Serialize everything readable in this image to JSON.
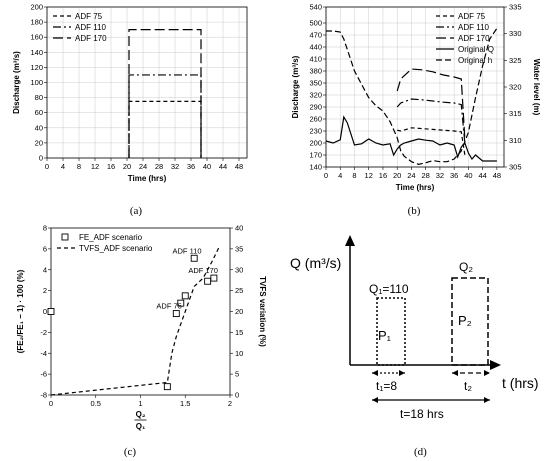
{
  "chart_data": [
    {
      "type": "line",
      "caption": "(a)",
      "xlabel": "Time (hrs)",
      "ylabel": "Discharge (m³/s)",
      "xlim": [
        0,
        50
      ],
      "ylim": [
        0,
        200
      ],
      "xticks": [
        0,
        4,
        8,
        12,
        16,
        20,
        24,
        28,
        32,
        36,
        40,
        44,
        48
      ],
      "yticks": [
        0,
        20,
        40,
        60,
        80,
        100,
        120,
        140,
        160,
        180,
        200
      ],
      "grid": true,
      "legend_position": "top-left",
      "series": [
        {
          "name": "ADF 75",
          "dash": "4,3",
          "x": [
            20.5,
            20.5,
            38.5,
            38.5
          ],
          "y": [
            0,
            75,
            75,
            0
          ]
        },
        {
          "name": "ADF 110",
          "dash": "8,3,2,3",
          "x": [
            20.5,
            20.5,
            38.5,
            38.5
          ],
          "y": [
            0,
            110,
            110,
            0
          ]
        },
        {
          "name": "ADF 170",
          "dash": "10,4",
          "x": [
            20.5,
            20.5,
            38.5,
            38.5
          ],
          "y": [
            0,
            170,
            170,
            0
          ]
        }
      ]
    },
    {
      "type": "line",
      "caption": "(b)",
      "xlabel": "Time (hrs)",
      "ylabel": "Discharge (m³/s)",
      "ylabel_right": "Water level (m)",
      "xlim": [
        0,
        50
      ],
      "ylim": [
        140,
        540
      ],
      "ylim_right": [
        305,
        335
      ],
      "xticks": [
        0,
        4,
        8,
        12,
        16,
        20,
        24,
        28,
        32,
        36,
        40,
        44,
        48
      ],
      "yticks": [
        140,
        170,
        200,
        230,
        260,
        290,
        320,
        350,
        380,
        410,
        440,
        470,
        500,
        540
      ],
      "yticks_right": [
        305,
        310,
        315,
        320,
        325,
        330,
        335
      ],
      "grid": true,
      "legend_position": "top-right",
      "series": [
        {
          "name": "ADF 75",
          "dash": "4,3",
          "axis": "left",
          "x": [
            20,
            21,
            24,
            27,
            30,
            33,
            36,
            38,
            39
          ],
          "y": [
            232,
            230,
            238,
            236,
            234,
            232,
            230,
            228,
            170
          ]
        },
        {
          "name": "ADF 110",
          "dash": "8,3,2,3",
          "axis": "left",
          "x": [
            20,
            21,
            24,
            27,
            30,
            33,
            36,
            38,
            39
          ],
          "y": [
            290,
            300,
            310,
            308,
            305,
            302,
            300,
            296,
            200
          ]
        },
        {
          "name": "ADF 170",
          "dash": "10,4",
          "axis": "left",
          "x": [
            20,
            21,
            24,
            27,
            30,
            33,
            36,
            38,
            39
          ],
          "y": [
            330,
            360,
            385,
            383,
            378,
            370,
            365,
            360,
            210
          ]
        },
        {
          "name": "Original Q",
          "dash": "",
          "axis": "left",
          "x": [
            0,
            2,
            4,
            5,
            6,
            8,
            10,
            12,
            14,
            16,
            18,
            19,
            20,
            21,
            22,
            24,
            26,
            28,
            30,
            32,
            34,
            36,
            37,
            38,
            39,
            40,
            41,
            42,
            44,
            46,
            48
          ],
          "y": [
            205,
            200,
            208,
            265,
            250,
            195,
            198,
            210,
            200,
            195,
            198,
            170,
            185,
            195,
            200,
            205,
            210,
            207,
            205,
            195,
            200,
            195,
            165,
            190,
            200,
            175,
            160,
            170,
            155,
            155,
            155
          ]
        },
        {
          "name": "Original h",
          "dash": "6,3",
          "axis": "right",
          "x": [
            0,
            2,
            4,
            5,
            6,
            8,
            10,
            12,
            14,
            16,
            18,
            20,
            21,
            22,
            24,
            26,
            28,
            30,
            32,
            34,
            36,
            38,
            40,
            42,
            44,
            46,
            48
          ],
          "y": [
            330.5,
            330.5,
            330.3,
            329.0,
            327.0,
            323.0,
            320.5,
            318.0,
            316.5,
            315.5,
            313.5,
            310.5,
            308.0,
            307.0,
            306.0,
            305.5,
            305.8,
            306.2,
            306.0,
            306.0,
            306.5,
            308.0,
            311.5,
            318.0,
            324.0,
            329.0,
            331.0
          ]
        }
      ]
    },
    {
      "type": "scatter",
      "caption": "(c)",
      "xlabel": "Q₂",
      "xlabel_den": "Q₁",
      "ylabel": "(FE₂/FE₁ − 1) · 100 (%)",
      "ylabel_right": "TVFS variation (%)",
      "xlim": [
        0,
        2
      ],
      "ylim": [
        -8,
        8
      ],
      "ylim_right": [
        0,
        40
      ],
      "xticks": [
        0,
        0.5,
        1,
        1.5,
        2
      ],
      "xtick_labels": [
        "0",
        "0.5",
        "1",
        "1.5",
        "2"
      ],
      "yticks": [
        -8,
        -6,
        -4,
        -2,
        0,
        2,
        4,
        6,
        8
      ],
      "yticks_right": [
        0,
        5,
        10,
        15,
        20,
        25,
        30,
        35,
        40
      ],
      "legend_position": "top-left",
      "series": [
        {
          "name": "FE_ADF scenario",
          "marker": "square",
          "x": [
            0.0,
            1.3,
            1.4,
            1.45,
            1.5,
            1.6,
            1.75,
            1.82
          ],
          "y": [
            0.0,
            -7.2,
            -0.2,
            0.8,
            1.5,
            5.1,
            2.9,
            3.2
          ]
        },
        {
          "name": "TVFS_ADF scenario",
          "dash": "4,3",
          "axis": "right",
          "x": [
            0.0,
            1.3,
            1.35,
            1.4,
            1.45,
            1.5,
            1.55,
            1.6,
            1.7,
            1.8,
            1.88
          ],
          "y": [
            0.0,
            3.0,
            10.0,
            14.0,
            17.0,
            20.0,
            23.0,
            26.0,
            28.0,
            32.0,
            35.5
          ]
        }
      ],
      "annotations": [
        {
          "text": "ADF 75",
          "x": 1.32,
          "y": -0.2
        },
        {
          "text": "ADF 110",
          "x": 1.52,
          "y": 5.1
        },
        {
          "text": "ADF 170",
          "x": 1.7,
          "y": 3.2
        }
      ]
    }
  ],
  "diagram_d": {
    "caption": "(d)",
    "y_axis_label": "Q (m³/s)",
    "x_axis_label": "t (hrs)",
    "q1_label": "Q₁=110",
    "q2_label": "Q₂",
    "p1_label": "P₁",
    "p2_label": "P₂",
    "t1_label": "t₁=8",
    "t2_label": "t₂",
    "total_label": "t=18 hrs"
  }
}
